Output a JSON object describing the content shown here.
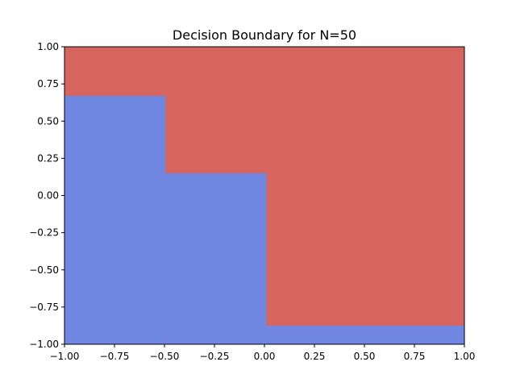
{
  "chart_data": {
    "type": "heatmap",
    "title": "Decision Boundary for N=50",
    "xlabel": "",
    "ylabel": "",
    "xlim": [
      -1.0,
      1.0
    ],
    "ylim": [
      -1.0,
      1.0
    ],
    "grid": false,
    "legend": "none",
    "x_ticks": [
      "−1.00",
      "−0.75",
      "−0.50",
      "−0.25",
      "0.00",
      "0.25",
      "0.50",
      "0.75",
      "1.00"
    ],
    "x_tick_values": [
      -1.0,
      -0.75,
      -0.5,
      -0.25,
      0.0,
      0.25,
      0.5,
      0.75,
      1.0
    ],
    "y_ticks": [
      "−1.00",
      "−0.75",
      "−0.50",
      "−0.25",
      "0.00",
      "0.25",
      "0.50",
      "0.75",
      "1.00"
    ],
    "y_tick_values": [
      -1.0,
      -0.75,
      -0.5,
      -0.25,
      0.0,
      0.25,
      0.5,
      0.75,
      1.0
    ],
    "background_class": {
      "color": "#d6655f"
    },
    "regions": [
      {
        "class": "blue",
        "color": "#6f87e1",
        "x": [
          -1.0,
          -0.495
        ],
        "y": [
          -1.0,
          0.67
        ]
      },
      {
        "class": "blue",
        "color": "#6f87e1",
        "x": [
          -0.495,
          0.01
        ],
        "y": [
          -1.0,
          0.15
        ]
      },
      {
        "class": "blue",
        "color": "#6f87e1",
        "x": [
          0.01,
          1.0
        ],
        "y": [
          -1.0,
          -0.875
        ]
      }
    ]
  }
}
